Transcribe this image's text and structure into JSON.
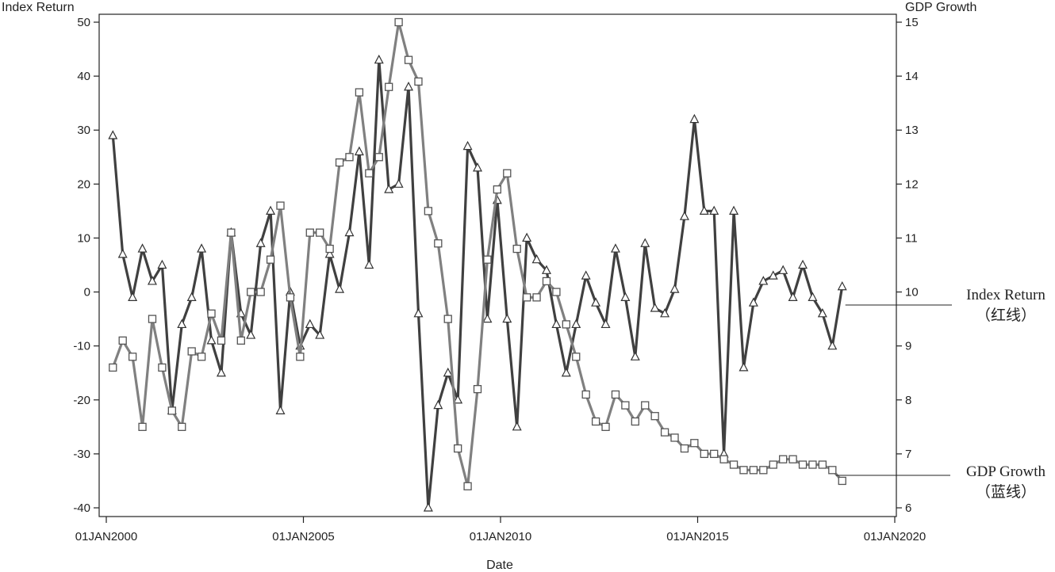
{
  "chart_data": {
    "type": "line",
    "xlabel": "Date",
    "ylabel_left": "Index Return",
    "ylabel_right": "GDP Growth",
    "x_range": [
      "2000-01-01",
      "2020-01-01"
    ],
    "x_ticks": [
      "01JAN2000",
      "01JAN2005",
      "01JAN2010",
      "01JAN2015",
      "01JAN2020"
    ],
    "y_left_range": [
      -40,
      50
    ],
    "y_left_ticks": [
      50,
      40,
      30,
      20,
      10,
      0,
      -10,
      -20,
      -30,
      -40
    ],
    "y_right_range": [
      6,
      15
    ],
    "y_right_ticks": [
      15,
      14,
      13,
      12,
      11,
      10,
      9,
      8,
      7,
      6
    ],
    "grid": false,
    "annotations": {
      "index_return": [
        "Index Return",
        "（红线）"
      ],
      "gdp_growth": [
        "GDP Growth",
        "（蓝线）"
      ]
    },
    "series": [
      {
        "name": "Index Return",
        "axis": "left",
        "marker": "triangle",
        "color": "#404040",
        "points": [
          [
            "2000-03",
            29
          ],
          [
            "2000-06",
            7
          ],
          [
            "2000-09",
            -1
          ],
          [
            "2000-12",
            8
          ],
          [
            "2001-03",
            2
          ],
          [
            "2001-06",
            5
          ],
          [
            "2001-09",
            -22
          ],
          [
            "2001-12",
            -6
          ],
          [
            "2002-03",
            -1
          ],
          [
            "2002-06",
            8
          ],
          [
            "2002-09",
            -9
          ],
          [
            "2002-12",
            -15
          ],
          [
            "2003-03",
            11
          ],
          [
            "2003-06",
            -4
          ],
          [
            "2003-09",
            -8
          ],
          [
            "2003-12",
            9
          ],
          [
            "2004-03",
            15
          ],
          [
            "2004-06",
            -22
          ],
          [
            "2004-09",
            0
          ],
          [
            "2004-12",
            -10
          ],
          [
            "2005-03",
            -6
          ],
          [
            "2005-06",
            -8
          ],
          [
            "2005-09",
            7
          ],
          [
            "2005-12",
            0.5
          ],
          [
            "2006-03",
            11
          ],
          [
            "2006-06",
            26
          ],
          [
            "2006-09",
            5
          ],
          [
            "2006-12",
            43
          ],
          [
            "2007-03",
            19
          ],
          [
            "2007-06",
            20
          ],
          [
            "2007-09",
            38
          ],
          [
            "2007-12",
            -4
          ],
          [
            "2008-03",
            -40
          ],
          [
            "2008-06",
            -21
          ],
          [
            "2008-09",
            -15
          ],
          [
            "2008-12",
            -20
          ],
          [
            "2009-03",
            27
          ],
          [
            "2009-06",
            23
          ],
          [
            "2009-09",
            -5
          ],
          [
            "2009-12",
            17
          ],
          [
            "2010-03",
            -5
          ],
          [
            "2010-06",
            -25
          ],
          [
            "2010-09",
            10
          ],
          [
            "2010-12",
            6
          ],
          [
            "2011-03",
            4
          ],
          [
            "2011-06",
            -6
          ],
          [
            "2011-09",
            -15
          ],
          [
            "2011-12",
            -6
          ],
          [
            "2012-03",
            3
          ],
          [
            "2012-06",
            -2
          ],
          [
            "2012-09",
            -6
          ],
          [
            "2012-12",
            8
          ],
          [
            "2013-03",
            -1
          ],
          [
            "2013-06",
            -12
          ],
          [
            "2013-09",
            9
          ],
          [
            "2013-12",
            -3
          ],
          [
            "2014-03",
            -4
          ],
          [
            "2014-06",
            0.5
          ],
          [
            "2014-09",
            14
          ],
          [
            "2014-12",
            32
          ],
          [
            "2015-03",
            15
          ],
          [
            "2015-06",
            15
          ],
          [
            "2015-09",
            -30
          ],
          [
            "2015-12",
            15
          ],
          [
            "2016-03",
            -14
          ],
          [
            "2016-06",
            -2
          ],
          [
            "2016-09",
            2
          ],
          [
            "2016-12",
            3
          ],
          [
            "2017-03",
            4
          ],
          [
            "2017-06",
            -1
          ],
          [
            "2017-09",
            5
          ],
          [
            "2017-12",
            -1
          ],
          [
            "2018-03",
            -4
          ],
          [
            "2018-06",
            -10
          ],
          [
            "2018-09",
            1
          ]
        ]
      },
      {
        "name": "GDP Growth",
        "axis": "right",
        "marker": "square",
        "color": "#808080",
        "points": [
          [
            "2000-03",
            8.6
          ],
          [
            "2000-06",
            9.1
          ],
          [
            "2000-09",
            8.8
          ],
          [
            "2000-12",
            7.5
          ],
          [
            "2001-03",
            9.5
          ],
          [
            "2001-06",
            8.6
          ],
          [
            "2001-09",
            7.8
          ],
          [
            "2001-12",
            7.5
          ],
          [
            "2002-03",
            8.9
          ],
          [
            "2002-06",
            8.8
          ],
          [
            "2002-09",
            9.6
          ],
          [
            "2002-12",
            9.1
          ],
          [
            "2003-03",
            11.1
          ],
          [
            "2003-06",
            9.1
          ],
          [
            "2003-09",
            10
          ],
          [
            "2003-12",
            10
          ],
          [
            "2004-03",
            10.6
          ],
          [
            "2004-06",
            11.6
          ],
          [
            "2004-09",
            9.9
          ],
          [
            "2004-12",
            8.8
          ],
          [
            "2005-03",
            11.1
          ],
          [
            "2005-06",
            11.1
          ],
          [
            "2005-09",
            10.8
          ],
          [
            "2005-12",
            12.4
          ],
          [
            "2006-03",
            12.5
          ],
          [
            "2006-06",
            13.7
          ],
          [
            "2006-09",
            12.2
          ],
          [
            "2006-12",
            12.5
          ],
          [
            "2007-03",
            13.8
          ],
          [
            "2007-06",
            15
          ],
          [
            "2007-09",
            14.3
          ],
          [
            "2007-12",
            13.9
          ],
          [
            "2008-03",
            11.5
          ],
          [
            "2008-06",
            10.9
          ],
          [
            "2008-09",
            9.5
          ],
          [
            "2008-12",
            7.1
          ],
          [
            "2009-03",
            6.4
          ],
          [
            "2009-06",
            8.2
          ],
          [
            "2009-09",
            10.6
          ],
          [
            "2009-12",
            11.9
          ],
          [
            "2010-03",
            12.2
          ],
          [
            "2010-06",
            10.8
          ],
          [
            "2010-09",
            9.9
          ],
          [
            "2010-12",
            9.9
          ],
          [
            "2011-03",
            10.2
          ],
          [
            "2011-06",
            10
          ],
          [
            "2011-09",
            9.4
          ],
          [
            "2011-12",
            8.8
          ],
          [
            "2012-03",
            8.1
          ],
          [
            "2012-06",
            7.6
          ],
          [
            "2012-09",
            7.5
          ],
          [
            "2012-12",
            8.1
          ],
          [
            "2013-03",
            7.9
          ],
          [
            "2013-06",
            7.6
          ],
          [
            "2013-09",
            7.9
          ],
          [
            "2013-12",
            7.7
          ],
          [
            "2014-03",
            7.4
          ],
          [
            "2014-06",
            7.3
          ],
          [
            "2014-09",
            7.1
          ],
          [
            "2014-12",
            7.2
          ],
          [
            "2015-03",
            7
          ],
          [
            "2015-06",
            7
          ],
          [
            "2015-09",
            6.9
          ],
          [
            "2015-12",
            6.8
          ],
          [
            "2016-03",
            6.7
          ],
          [
            "2016-06",
            6.7
          ],
          [
            "2016-09",
            6.7
          ],
          [
            "2016-12",
            6.8
          ],
          [
            "2017-03",
            6.9
          ],
          [
            "2017-06",
            6.9
          ],
          [
            "2017-09",
            6.8
          ],
          [
            "2017-12",
            6.8
          ],
          [
            "2018-03",
            6.8
          ],
          [
            "2018-06",
            6.7
          ],
          [
            "2018-09",
            6.5
          ]
        ]
      }
    ]
  }
}
